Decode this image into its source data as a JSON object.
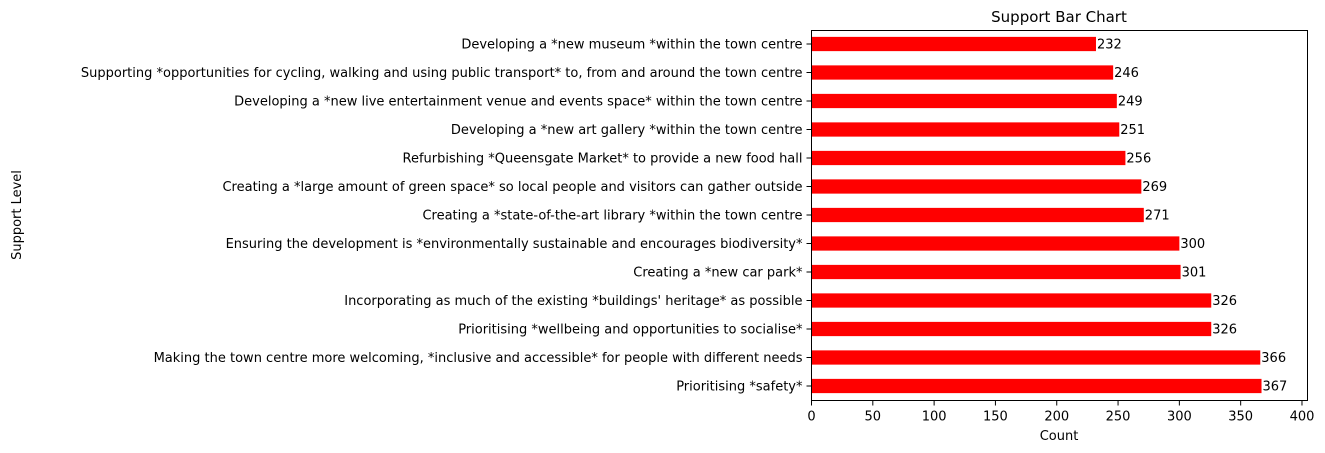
{
  "chart_data": {
    "type": "bar",
    "orientation": "horizontal",
    "title": "Support Bar Chart",
    "xlabel": "Count",
    "ylabel": "Support Level",
    "xlim": [
      0,
      400
    ],
    "xticks": [
      0,
      50,
      100,
      150,
      200,
      250,
      300,
      350,
      400
    ],
    "grid": false,
    "legend": "none",
    "bar_color": "#ff0000",
    "categories": [
      "Developing a *new museum *within the town centre",
      "Supporting *opportunities for cycling, walking and using public transport* to, from and around the town centre",
      "Developing a *new live entertainment venue and events space* within the town centre",
      "Developing a *new art gallery *within the town centre",
      "Refurbishing *Queensgate Market* to provide a new food hall",
      "Creating a *large amount of green space* so local people and visitors can gather outside",
      "Creating a *state-of-the-art library *within the town centre",
      "Ensuring the development is *environmentally sustainable and encourages biodiversity*",
      "Creating a *new car park*",
      "Incorporating as much of the existing *buildings' heritage* as possible",
      "Prioritising *wellbeing and opportunities to socialise*",
      "Making the town centre more welcoming, *inclusive and accessible* for people with different needs",
      "Prioritising *safety*"
    ],
    "values": [
      232,
      246,
      249,
      251,
      256,
      269,
      271,
      300,
      301,
      326,
      326,
      366,
      367
    ]
  }
}
